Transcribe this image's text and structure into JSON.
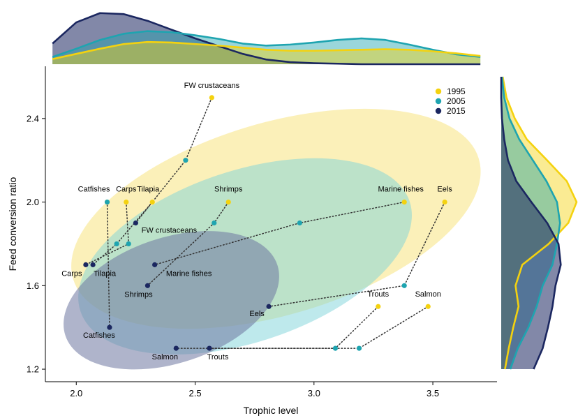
{
  "chart_data": {
    "type": "scatter",
    "title": "",
    "xlabel": "Trophic level",
    "ylabel": "Feed conversion ratio",
    "xlim": [
      1.87,
      3.77
    ],
    "ylim": [
      1.14,
      2.65
    ],
    "x_ticks": [
      2.0,
      2.5,
      3.0,
      3.5
    ],
    "x_tick_labels": [
      "2.0",
      "2.5",
      "3.0",
      "3.5"
    ],
    "y_ticks": [
      1.2,
      1.6,
      2.0,
      2.4
    ],
    "y_tick_labels": [
      "1.2",
      "1.6",
      "2.0",
      "2.4"
    ],
    "grid": false,
    "legend_position": "top-right",
    "series": [
      {
        "name": "1995",
        "color": "#F4D20F",
        "points": [
          {
            "label": "FW crustaceans",
            "x": 2.57,
            "y": 2.5
          },
          {
            "label": "Catfishes",
            "x": 2.13,
            "y": 2.0
          },
          {
            "label": "Carps",
            "x": 2.21,
            "y": 2.0
          },
          {
            "label": "Tilapia",
            "x": 2.32,
            "y": 2.0
          },
          {
            "label": "Shrimps",
            "x": 2.64,
            "y": 2.0
          },
          {
            "label": "Marine fishes",
            "x": 3.38,
            "y": 2.0
          },
          {
            "label": "Eels",
            "x": 3.55,
            "y": 2.0
          },
          {
            "label": "Trouts",
            "x": 3.27,
            "y": 1.5
          },
          {
            "label": "Salmon",
            "x": 3.48,
            "y": 1.5
          }
        ]
      },
      {
        "name": "2005",
        "color": "#1EA4B0",
        "points": [
          {
            "label": "FW crustaceans",
            "x": 2.46,
            "y": 2.2
          },
          {
            "label": "Catfishes",
            "x": 2.13,
            "y": 2.0
          },
          {
            "label": "Carps",
            "x": 2.22,
            "y": 1.8
          },
          {
            "label": "Tilapia",
            "x": 2.17,
            "y": 1.8
          },
          {
            "label": "Shrimps",
            "x": 2.58,
            "y": 1.9
          },
          {
            "label": "Marine fishes",
            "x": 2.94,
            "y": 1.9
          },
          {
            "label": "Eels",
            "x": 3.38,
            "y": 1.6
          },
          {
            "label": "Trouts",
            "x": 3.09,
            "y": 1.3
          },
          {
            "label": "Salmon",
            "x": 3.19,
            "y": 1.3
          }
        ]
      },
      {
        "name": "2015",
        "color": "#1B2760",
        "points": [
          {
            "label": "FW crustaceans",
            "x": 2.25,
            "y": 1.9
          },
          {
            "label": "Catfishes",
            "x": 2.14,
            "y": 1.4
          },
          {
            "label": "Carps",
            "x": 2.04,
            "y": 1.7
          },
          {
            "label": "Tilapia",
            "x": 2.07,
            "y": 1.7
          },
          {
            "label": "Shrimps",
            "x": 2.3,
            "y": 1.6
          },
          {
            "label": "Marine fishes",
            "x": 2.33,
            "y": 1.7
          },
          {
            "label": "Eels",
            "x": 2.81,
            "y": 1.5
          },
          {
            "label": "Trouts",
            "x": 2.56,
            "y": 1.3
          },
          {
            "label": "Salmon",
            "x": 2.42,
            "y": 1.3
          }
        ]
      }
    ],
    "point_labels": [
      {
        "text": "FW crustaceans",
        "series": "1995",
        "x": 2.57,
        "y": 2.5
      },
      {
        "text": "Catfishes",
        "series": "1995",
        "x": 2.13,
        "y": 2.0
      },
      {
        "text": "Carps",
        "series": "1995",
        "x": 2.21,
        "y": 2.0
      },
      {
        "text": "Tilapia",
        "series": "1995",
        "x": 2.32,
        "y": 2.0
      },
      {
        "text": "Shrimps",
        "series": "1995",
        "x": 2.64,
        "y": 2.0
      },
      {
        "text": "Marine fishes",
        "series": "1995",
        "x": 3.38,
        "y": 2.0
      },
      {
        "text": "Eels",
        "series": "1995",
        "x": 3.55,
        "y": 2.0
      },
      {
        "text": "Trouts",
        "series": "1995",
        "x": 3.27,
        "y": 1.5
      },
      {
        "text": "Salmon",
        "series": "1995",
        "x": 3.48,
        "y": 1.5
      },
      {
        "text": "FW crustaceans",
        "series": "2015",
        "x": 2.25,
        "y": 1.9
      },
      {
        "text": "Carps",
        "series": "2015",
        "x": 2.04,
        "y": 1.7
      },
      {
        "text": "Tilapia",
        "series": "2015",
        "x": 2.07,
        "y": 1.7
      },
      {
        "text": "Shrimps",
        "series": "2015",
        "x": 2.3,
        "y": 1.6
      },
      {
        "text": "Marine fishes",
        "series": "2015",
        "x": 2.33,
        "y": 1.7
      },
      {
        "text": "Eels",
        "series": "2015",
        "x": 2.81,
        "y": 1.5
      },
      {
        "text": "Catfishes",
        "series": "2015",
        "x": 2.14,
        "y": 1.4
      },
      {
        "text": "Salmon",
        "series": "2015",
        "x": 2.42,
        "y": 1.3
      },
      {
        "text": "Trouts",
        "series": "2015",
        "x": 2.56,
        "y": 1.3
      }
    ],
    "ellipses": [
      {
        "series": "1995",
        "cx": 2.84,
        "cy": 1.92,
        "rx": 0.89,
        "ry": 0.46,
        "angle": -16.5
      },
      {
        "series": "2005",
        "cx": 2.71,
        "cy": 1.74,
        "rx": 0.73,
        "ry": 0.41,
        "angle": -18.5
      },
      {
        "series": "2015",
        "cx": 2.4,
        "cy": 1.53,
        "rx": 0.47,
        "ry": 0.3,
        "angle": -18.5
      }
    ],
    "marginal_x_density": {
      "x": [
        1.9,
        2.0,
        2.1,
        2.2,
        2.3,
        2.4,
        2.5,
        2.6,
        2.7,
        2.8,
        2.9,
        3.0,
        3.1,
        3.2,
        3.3,
        3.4,
        3.5,
        3.6,
        3.7
      ],
      "1995": [
        0.1,
        0.2,
        0.3,
        0.39,
        0.43,
        0.42,
        0.39,
        0.36,
        0.32,
        0.28,
        0.26,
        0.26,
        0.27,
        0.28,
        0.29,
        0.28,
        0.25,
        0.21,
        0.16
      ],
      "2005": [
        0.14,
        0.3,
        0.47,
        0.59,
        0.64,
        0.62,
        0.56,
        0.49,
        0.4,
        0.36,
        0.38,
        0.42,
        0.47,
        0.5,
        0.47,
        0.38,
        0.28,
        0.19,
        0.14
      ],
      "2015": [
        0.4,
        0.81,
        0.99,
        0.97,
        0.84,
        0.67,
        0.5,
        0.35,
        0.2,
        0.09,
        0.04,
        0.02,
        0.01,
        0,
        0,
        0,
        0,
        0,
        0
      ]
    },
    "marginal_y_density": {
      "y": [
        1.2,
        1.3,
        1.4,
        1.5,
        1.6,
        1.7,
        1.8,
        1.9,
        2.0,
        2.1,
        2.2,
        2.3,
        2.4,
        2.5,
        2.6
      ],
      "1995": [
        0.05,
        0.1,
        0.16,
        0.23,
        0.19,
        0.28,
        0.63,
        0.89,
        1.0,
        0.87,
        0.61,
        0.34,
        0.18,
        0.07,
        0.02
      ],
      "2005": [
        0.12,
        0.22,
        0.36,
        0.47,
        0.55,
        0.68,
        0.74,
        0.78,
        0.74,
        0.6,
        0.42,
        0.24,
        0.11,
        0.04,
        0.01
      ],
      "2015": [
        0.43,
        0.55,
        0.62,
        0.68,
        0.72,
        0.79,
        0.76,
        0.61,
        0.4,
        0.2,
        0.09,
        0.04,
        0.01,
        0,
        0
      ]
    },
    "links": [
      {
        "label": "FW crustaceans",
        "series": [
          "1995",
          "2005",
          "2015"
        ]
      },
      {
        "label": "Catfishes",
        "series": [
          "1995",
          "2005",
          "2015"
        ]
      },
      {
        "label": "Carps",
        "series": [
          "1995",
          "2005",
          "2015"
        ]
      },
      {
        "label": "Tilapia",
        "series": [
          "1995",
          "2005",
          "2015"
        ]
      },
      {
        "label": "Shrimps",
        "series": [
          "1995",
          "2005",
          "2015"
        ]
      },
      {
        "label": "Marine fishes",
        "series": [
          "1995",
          "2005",
          "2015"
        ]
      },
      {
        "label": "Eels",
        "series": [
          "1995",
          "2005",
          "2015"
        ]
      },
      {
        "label": "Trouts",
        "series": [
          "1995",
          "2005",
          "2015"
        ]
      },
      {
        "label": "Salmon",
        "series": [
          "1995",
          "2005",
          "2015"
        ]
      }
    ]
  }
}
